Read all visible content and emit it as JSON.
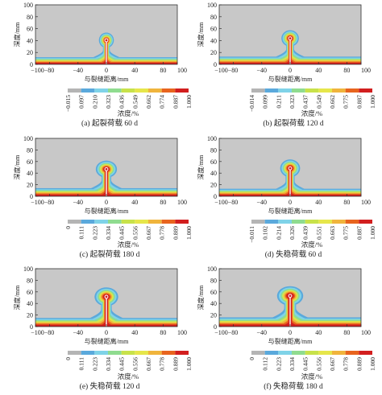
{
  "figure": {
    "axis": {
      "ylabel": "深度/mm",
      "xlabel": "与裂缝距离/mm",
      "xticks": [
        "−100−80",
        "−40",
        "0",
        "40",
        "80",
        "100"
      ],
      "yticks": [
        "0",
        "20",
        "40",
        "60",
        "80",
        "100"
      ]
    },
    "colorbar_label": "浓度/%",
    "colors": [
      "#b4b4b4",
      "#5aa9dc",
      "#7fd3e8",
      "#8fdc8f",
      "#d9e64a",
      "#f0b43c",
      "#e8641e",
      "#d21e1e"
    ],
    "background_color": "#c8c8c8"
  },
  "chart_data": [
    {
      "type": "heatmap",
      "caption": "(a) 起裂荷载 60 d",
      "xlabel": "与裂缝距离/mm",
      "ylabel": "深度/mm",
      "xlim": [
        -100,
        100
      ],
      "ylim": [
        0,
        100
      ],
      "colorbar_ticks": [
        "−0.015",
        "0.097",
        "0.210",
        "0.323",
        "0.436",
        "0.549",
        "0.662",
        "0.774",
        "0.887",
        "1.000"
      ],
      "colorbar_label": "浓度/%",
      "plume_height": 52,
      "plume_halfwidth": 12,
      "surface_band": 12
    },
    {
      "type": "heatmap",
      "caption": "(b) 起裂荷载 120 d",
      "xlabel": "与裂缝距离/mm",
      "ylabel": "深度/mm",
      "xlim": [
        -100,
        100
      ],
      "ylim": [
        0,
        100
      ],
      "colorbar_ticks": [
        "−0.014",
        "0.099",
        "0.211",
        "0.323",
        "0.437",
        "0.549",
        "0.662",
        "0.775",
        "0.887",
        "1.000"
      ],
      "colorbar_label": "浓度/%",
      "plume_height": 56,
      "plume_halfwidth": 14,
      "surface_band": 13
    },
    {
      "type": "heatmap",
      "caption": "(c) 起裂荷载 180 d",
      "xlabel": "与裂缝距离/mm",
      "ylabel": "深度/mm",
      "xlim": [
        -100,
        100
      ],
      "ylim": [
        0,
        100
      ],
      "colorbar_ticks": [
        "0",
        "0.111",
        "0.223",
        "0.334",
        "0.445",
        "0.556",
        "0.667",
        "0.778",
        "0.889",
        "1.000"
      ],
      "colorbar_label": "浓度/%",
      "plume_height": 60,
      "plume_halfwidth": 17,
      "surface_band": 14
    },
    {
      "type": "heatmap",
      "caption": "(d) 失稳荷载 60 d",
      "xlabel": "与裂缝距离/mm",
      "ylabel": "深度/mm",
      "xlim": [
        -100,
        100
      ],
      "ylim": [
        0,
        100
      ],
      "colorbar_ticks": [
        "−0.011",
        "0.102",
        "0.214",
        "0.326",
        "0.439",
        "0.551",
        "0.663",
        "0.775",
        "0.887",
        "1.000"
      ],
      "colorbar_label": "浓度/%",
      "plume_height": 62,
      "plume_halfwidth": 16,
      "surface_band": 13
    },
    {
      "type": "heatmap",
      "caption": "(e) 失稳荷载 120 d",
      "xlabel": "与裂缝距离/mm",
      "ylabel": "深度/mm",
      "xlim": [
        -100,
        100
      ],
      "ylim": [
        0,
        100
      ],
      "colorbar_ticks": [
        "0",
        "0.111",
        "0.223",
        "0.334",
        "0.445",
        "0.556",
        "0.667",
        "0.778",
        "0.889",
        "1.000"
      ],
      "colorbar_label": "浓度/%",
      "plume_height": 66,
      "plume_halfwidth": 19,
      "surface_band": 15
    },
    {
      "type": "heatmap",
      "caption": "(f) 失稳荷载 180 d",
      "xlabel": "与裂缝距离/mm",
      "ylabel": "深度/mm",
      "xlim": [
        -100,
        100
      ],
      "ylim": [
        0,
        100
      ],
      "colorbar_ticks": [
        "0",
        "0.112",
        "0.223",
        "0.334",
        "0.445",
        "0.556",
        "0.667",
        "0.778",
        "0.889",
        "1.000"
      ],
      "colorbar_label": "浓度/%",
      "plume_height": 68,
      "plume_halfwidth": 21,
      "surface_band": 16
    }
  ]
}
